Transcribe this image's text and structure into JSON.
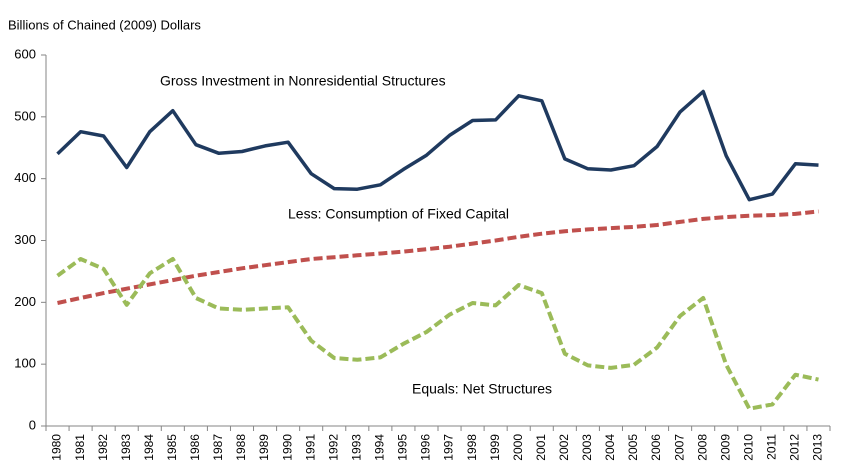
{
  "chart_data": {
    "type": "line",
    "y_label": "Billions of Chained (2009) Dollars",
    "categories": [
      "1980",
      "1981",
      "1982",
      "1983",
      "1984",
      "1985",
      "1986",
      "1987",
      "1988",
      "1989",
      "1990",
      "1991",
      "1992",
      "1993",
      "1994",
      "1995",
      "1996",
      "1997",
      "1998",
      "1999",
      "2000",
      "2001",
      "2002",
      "2003",
      "2004",
      "2005",
      "2006",
      "2007",
      "2008",
      "2009",
      "2010",
      "2011",
      "2012",
      "2013"
    ],
    "series": [
      {
        "name": "Gross Investment in Nonresidential Structures",
        "color": "#1f3a5f",
        "dashed": false,
        "values": [
          440,
          476,
          469,
          418,
          476,
          510,
          455,
          441,
          444,
          453,
          459,
          408,
          384,
          383,
          390,
          415,
          438,
          470,
          494,
          495,
          534,
          526,
          432,
          416,
          414,
          421,
          452,
          508,
          541,
          437,
          366,
          375,
          424,
          422
        ]
      },
      {
        "name": "Less:  Consumption of Fixed Capital",
        "color": "#c0504d",
        "dashed": true,
        "values": [
          199,
          207,
          215,
          222,
          229,
          236,
          243,
          249,
          255,
          260,
          265,
          270,
          273,
          276,
          279,
          282,
          286,
          290,
          295,
          300,
          306,
          311,
          315,
          318,
          320,
          322,
          325,
          330,
          335,
          338,
          340,
          341,
          343,
          347
        ]
      },
      {
        "name": "Equals: Net Structures",
        "color": "#9bbb59",
        "dashed": true,
        "values": [
          243,
          270,
          254,
          196,
          247,
          270,
          207,
          190,
          188,
          190,
          192,
          138,
          110,
          107,
          111,
          133,
          152,
          180,
          199,
          195,
          228,
          215,
          117,
          98,
          94,
          99,
          127,
          178,
          207,
          99,
          28,
          35,
          83,
          75
        ]
      }
    ],
    "ylim": [
      0,
      600
    ],
    "yticks": [
      0,
      100,
      200,
      300,
      400,
      500,
      600
    ],
    "grid": false
  }
}
